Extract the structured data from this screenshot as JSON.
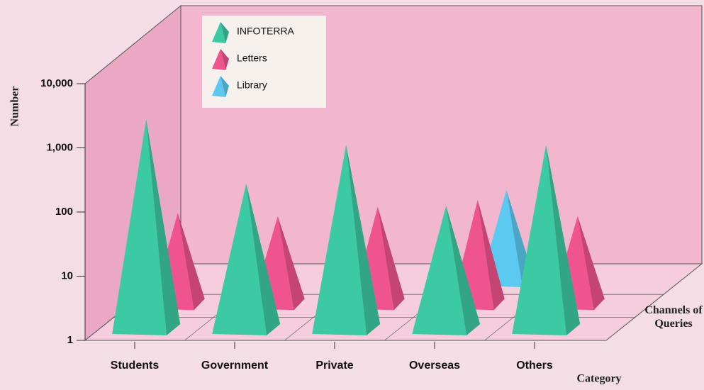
{
  "chart_data": {
    "type": "pyramid3d",
    "y_label": "Number",
    "x_label": "Category",
    "depth_label": "Channels of Queries",
    "categories": [
      "Students",
      "Government",
      "Private",
      "Overseas",
      "Others"
    ],
    "series": [
      {
        "name": "INFOTERRA",
        "color": "#3ccaa2",
        "values": [
          2000,
          200,
          800,
          90,
          800
        ]
      },
      {
        "name": "Letters",
        "color": "#f0548e",
        "values": [
          28,
          25,
          35,
          45,
          25
        ]
      },
      {
        "name": "Library",
        "color": "#5ccaf0",
        "values": [
          null,
          null,
          null,
          28,
          null
        ]
      }
    ],
    "ylim": [
      1,
      10000
    ],
    "log": true,
    "yticks": [
      1,
      10,
      100,
      {
        "value": 1000,
        "label": "1,000"
      },
      {
        "value": 10000,
        "label": "10,000"
      }
    ]
  }
}
